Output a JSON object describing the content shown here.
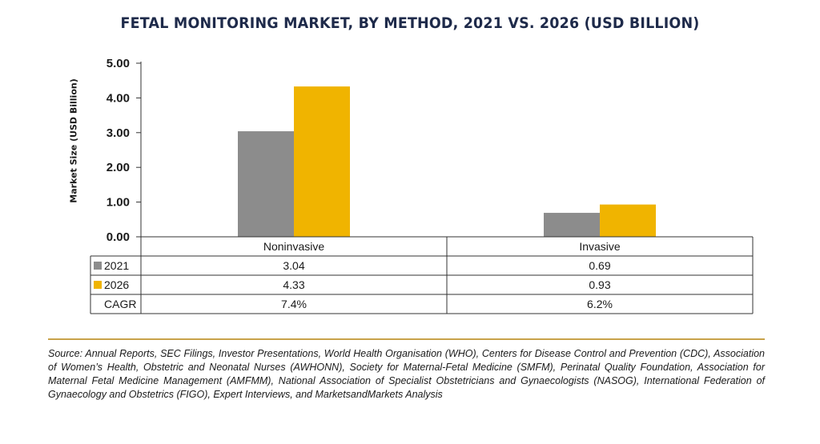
{
  "title": "FETAL MONITORING MARKET, BY METHOD, 2021 VS. 2026 (USD BILLION)",
  "source": "Source: Annual Reports, SEC Filings, Investor Presentations, World Health Organisation (WHO), Centers for Disease Control and Prevention (CDC), Association of Women’s Health, Obstetric and Neonatal Nurses (AWHONN), Society for Maternal-Fetal Medicine (SMFM), Perinatal Quality Foundation, Association for Maternal Fetal Medicine Management (AMFMM), National Association of Specialist Obstetricians and Gynaecologists (NASOG), International Federation of Gynaecology and Obstetrics (FIGO), Expert Interviews, and MarketsandMarkets Analysis",
  "colors": {
    "series_2021": "#8c8c8c",
    "series_2026": "#f0b400",
    "axis": "#333333",
    "divider": "#c8a24a"
  },
  "chart_data": {
    "type": "bar",
    "title": "FETAL MONITORING MARKET, BY METHOD, 2021 VS. 2026 (USD BILLION)",
    "xlabel": "",
    "ylabel": "Market Size (USD Billion)",
    "ylim": [
      0,
      5
    ],
    "yticks": [
      "0.00",
      "1.00",
      "2.00",
      "3.00",
      "4.00",
      "5.00"
    ],
    "grid": false,
    "categories": [
      "Noninvasive",
      "Invasive"
    ],
    "series": [
      {
        "name": "2021",
        "values": [
          3.04,
          0.69
        ],
        "labels": [
          "3.04",
          "0.69"
        ]
      },
      {
        "name": "2026",
        "values": [
          4.33,
          0.93
        ],
        "labels": [
          "4.33",
          "0.93"
        ]
      }
    ],
    "table_rows": [
      {
        "label": "2021",
        "cells": [
          "3.04",
          "0.69"
        ]
      },
      {
        "label": "2026",
        "cells": [
          "4.33",
          "0.93"
        ]
      },
      {
        "label": "CAGR",
        "cells": [
          "7.4%",
          "6.2%"
        ]
      }
    ]
  }
}
